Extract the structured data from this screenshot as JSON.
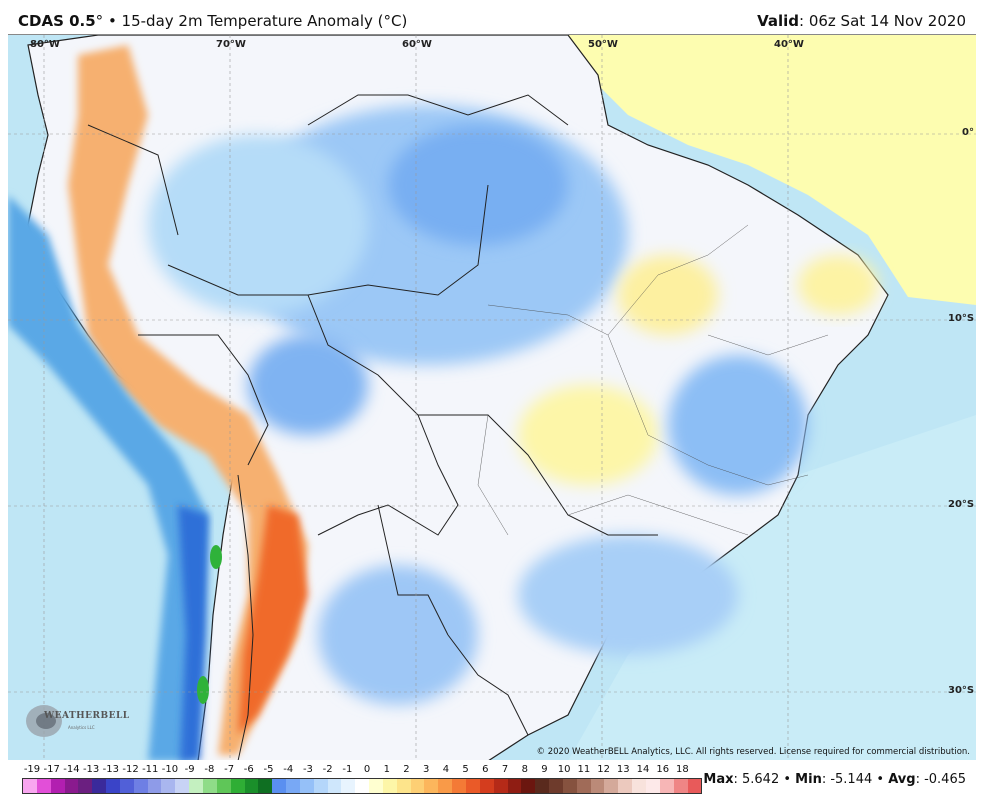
{
  "header": {
    "title_bold": "CDAS 0.5",
    "title_deg": "°",
    "title_rest": " • 15-day 2m Temperature Anomaly (°C)",
    "valid_label": "Valid",
    "valid_value": ": 06z Sat 14 Nov 2020"
  },
  "map": {
    "lon_labels": [
      "80°W",
      "70°W",
      "60°W",
      "50°W",
      "40°W"
    ],
    "lat_labels": [
      "0°",
      "10°S",
      "20°S",
      "30°S"
    ],
    "copyright": "© 2020 WeatherBELL Analytics, LLC. All rights reserved. License required for commercial distribution.",
    "logo_text": "WEATHERBELL",
    "logo_sub": "Analytics LLC",
    "colors": {
      "ocean_light": "#bfe6f5",
      "ocean_mid": "#8fd0ee",
      "ocean_deep": "#5aa8e6",
      "land_neutral": "#f4f6fb",
      "atlantic_warm": "#fdfdb0",
      "amazon_cool": "#9cc8f6",
      "andes_warm": "#f4a35f",
      "andes_hot": "#f06a2a",
      "green_cold": "#2fb23a"
    }
  },
  "colorbar": {
    "labels": [
      "-19",
      "-17",
      "-14",
      "-13",
      "-13",
      "-12",
      "-11",
      "-10",
      "-9",
      "-8",
      "-7",
      "-6",
      "-5",
      "-4",
      "-3",
      "-2",
      "-1",
      "0",
      "1",
      "2",
      "3",
      "4",
      "5",
      "6",
      "7",
      "8",
      "9",
      "10",
      "11",
      "12",
      "13",
      "14",
      "16",
      "18"
    ],
    "colors": [
      "#f9a6f0",
      "#e24fd8",
      "#b21fb0",
      "#8a1a8e",
      "#6b1f80",
      "#3a2a9b",
      "#3a44c8",
      "#5160d8",
      "#6e7fe4",
      "#8e9be8",
      "#a9b6ef",
      "#c8d3f5",
      "#c4f0c0",
      "#8fdc88",
      "#5fc658",
      "#2fae35",
      "#1a8f2a",
      "#0f6f22",
      "#5a8ff0",
      "#78a8f5",
      "#95c0f8",
      "#b4d6fa",
      "#cfe7fc",
      "#e8f4fe",
      "#ffffff",
      "#ffffd0",
      "#fdf6a8",
      "#fde48b",
      "#fdcf74",
      "#fcb65c",
      "#f99a48",
      "#f47a36",
      "#ea5a28",
      "#d43d1e",
      "#b52a18",
      "#8f1d13",
      "#6b160f",
      "#5a2a1d",
      "#6e3b2c",
      "#86523f",
      "#a06b58",
      "#bb8a78",
      "#d4a99a",
      "#ecc9be",
      "#f8e2dc",
      "#fde9e9",
      "#f7b6b6",
      "#ef8585",
      "#e85a5a"
    ]
  },
  "stats": {
    "max_label": "Max",
    "max_value": ": 5.642",
    "min_label": "Min",
    "min_value": ": -5.144",
    "avg_label": "Avg",
    "avg_value": ": -0.465",
    "sep": " • "
  }
}
